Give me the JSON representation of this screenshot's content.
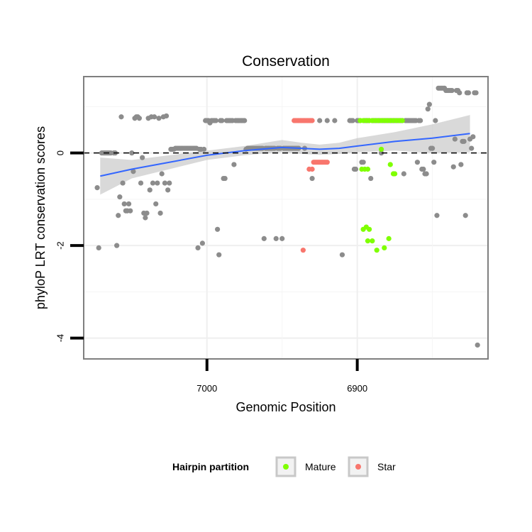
{
  "chart_data": {
    "type": "scatter",
    "title": "Conservation",
    "xlabel": "Genomic Position",
    "ylabel": "phyloP LRT conservation scores",
    "x_reversed": true,
    "xlim": [
      7082,
      6813
    ],
    "ylim": [
      -4.45,
      1.65
    ],
    "x_ticks": [
      7000,
      6900
    ],
    "y_ticks": [
      -4,
      -2,
      0
    ],
    "reference_line": {
      "y": 0,
      "style": "dashed"
    },
    "grid": true,
    "legend": {
      "title": "Hairpin partition",
      "position": "bottom",
      "entries": [
        {
          "name": "Mature",
          "color": "#7fff00"
        },
        {
          "name": "Star",
          "color": "#f8766d"
        }
      ]
    },
    "colors": {
      "other": "#8c8c8c",
      "Mature": "#7fff00",
      "Star": "#f8766d",
      "smooth": "#3366ff",
      "ribbon": "#bfbfbf"
    },
    "smooth": {
      "x": [
        7071,
        7050,
        7025,
        7000,
        6975,
        6950,
        6937,
        6925,
        6912,
        6900,
        6875,
        6850,
        6825
      ],
      "y": [
        -0.5,
        -0.35,
        -0.2,
        -0.05,
        0.05,
        0.12,
        0.1,
        0.08,
        0.1,
        0.15,
        0.25,
        0.32,
        0.42
      ]
    },
    "ribbon": {
      "x": [
        7071,
        7050,
        7025,
        7000,
        6975,
        6950,
        6937,
        6925,
        6912,
        6900,
        6875,
        6850,
        6825
      ],
      "lower": [
        -0.9,
        -0.55,
        -0.35,
        -0.15,
        -0.05,
        0.02,
        -0.02,
        -0.04,
        -0.02,
        0.02,
        0.05,
        0.0,
        0.02
      ],
      "upper": [
        -0.1,
        -0.15,
        -0.05,
        0.05,
        0.15,
        0.28,
        0.22,
        0.18,
        0.22,
        0.32,
        0.45,
        0.62,
        0.82
      ]
    },
    "series": [
      {
        "name": "other",
        "x": [
          7073,
          7072,
          7070,
          7069,
          7068,
          7067,
          7066,
          7065,
          7064,
          7062,
          7061,
          7060,
          7059,
          7058,
          7057,
          7056,
          7055,
          7054,
          7053,
          7052,
          7051,
          7050,
          7049,
          7048,
          7047,
          7046,
          7045,
          7044,
          7043,
          7042,
          7041,
          7040,
          7039,
          7038,
          7037,
          7036,
          7035,
          7034,
          7033,
          7032,
          7031,
          7030,
          7029,
          7028,
          7027,
          7026,
          7025,
          7024,
          7023,
          7022,
          7021,
          7020,
          7019,
          7018,
          7017,
          7016,
          7015,
          7014,
          7013,
          7012,
          7011,
          7010,
          7009,
          7008,
          7007,
          7006,
          7005,
          7004,
          7003,
          7002,
          7001,
          7000,
          6999,
          6998,
          6997,
          6996,
          6995,
          6994,
          6993,
          6992,
          6991,
          6990,
          6989,
          6988,
          6987,
          6986,
          6985,
          6984,
          6983,
          6982,
          6981,
          6980,
          6979,
          6978,
          6977,
          6976,
          6975,
          6974,
          6973,
          6972,
          6971,
          6970,
          6969,
          6968,
          6967,
          6966,
          6965,
          6964,
          6963,
          6962,
          6961,
          6960,
          6959,
          6958,
          6957,
          6956,
          6955,
          6954,
          6953,
          6952,
          6951,
          6950,
          6949,
          6948,
          6947,
          6946,
          6945,
          6944,
          6943,
          6942,
          6941,
          6940,
          6939,
          6935,
          6930,
          6925,
          6920,
          6915,
          6910,
          6905,
          6904,
          6903,
          6902,
          6901,
          6900,
          6899,
          6898,
          6897,
          6896,
          6895,
          6894,
          6893,
          6892,
          6891,
          6890,
          6889,
          6888,
          6887,
          6886,
          6885,
          6884,
          6883,
          6882,
          6881,
          6880,
          6879,
          6878,
          6877,
          6876,
          6875,
          6874,
          6873,
          6872,
          6871,
          6870,
          6869,
          6868,
          6867,
          6866,
          6865,
          6864,
          6863,
          6862,
          6861,
          6860,
          6859,
          6858,
          6857,
          6856,
          6855,
          6854,
          6853,
          6852,
          6851,
          6850,
          6849,
          6848,
          6847,
          6846,
          6845,
          6844,
          6843,
          6842,
          6841,
          6840,
          6839,
          6838,
          6837,
          6836,
          6835,
          6834,
          6833,
          6832,
          6831,
          6830,
          6829,
          6828,
          6827,
          6826,
          6825,
          6824,
          6823,
          6822,
          6821,
          6820
        ],
        "y": [
          -0.75,
          -2.05,
          0.0,
          0.0,
          0.0,
          0.0,
          0.0,
          0.0,
          0.0,
          0.0,
          0.0,
          -2.0,
          -1.35,
          -0.95,
          0.78,
          -0.65,
          -1.1,
          -1.25,
          -1.25,
          -1.1,
          -1.25,
          0.0,
          -0.4,
          0.75,
          0.78,
          0.78,
          0.75,
          -0.65,
          -0.1,
          -1.3,
          -1.4,
          -1.3,
          0.75,
          -0.8,
          0.78,
          -0.65,
          0.78,
          -1.1,
          -0.65,
          0.75,
          -1.3,
          -0.45,
          0.78,
          -0.65,
          0.8,
          -0.8,
          -0.65,
          0.08,
          0.08,
          0.08,
          0.1,
          0.1,
          0.1,
          0.1,
          0.1,
          0.1,
          0.1,
          0.1,
          0.1,
          0.1,
          0.1,
          0.1,
          0.1,
          0.1,
          0.1,
          -2.05,
          0.08,
          0.08,
          -1.95,
          0.08,
          0.7,
          0.7,
          0.7,
          0.65,
          0.7,
          0.7,
          0.7,
          0.7,
          -1.65,
          -2.2,
          0.7,
          0.7,
          -0.55,
          -0.55,
          0.7,
          0.7,
          0.7,
          0.7,
          0.7,
          -0.25,
          0.7,
          0.7,
          0.7,
          0.7,
          0.7,
          0.7,
          0.7,
          0.08,
          0.1,
          0.1,
          0.1,
          0.1,
          0.1,
          0.1,
          0.1,
          0.1,
          0.1,
          0.1,
          0.1,
          -1.85,
          0.1,
          0.1,
          0.1,
          0.1,
          0.1,
          0.1,
          0.1,
          -1.85,
          0.1,
          0.1,
          0.1,
          -1.85,
          0.1,
          0.1,
          0.1,
          0.1,
          0.1,
          0.1,
          0.1,
          0.1,
          0.1,
          0.1,
          0.1,
          0.1,
          -0.55,
          0.7,
          0.7,
          0.7,
          -2.2,
          0.7,
          0.7,
          0.7,
          -0.35,
          -0.35,
          0.7,
          0.7,
          0.7,
          -0.2,
          -0.2,
          0.7,
          0.7,
          0.7,
          0.7,
          -0.55,
          0.7,
          0.7,
          0.7,
          0.7,
          0.7,
          0.7,
          0.0,
          0.7,
          0.7,
          0.7,
          0.7,
          0.7,
          0.7,
          0.7,
          0.7,
          0.7,
          0.7,
          0.7,
          0.7,
          0.7,
          0.7,
          -0.45,
          0.7,
          0.7,
          0.7,
          0.7,
          0.7,
          0.7,
          0.7,
          0.7,
          -0.2,
          0.7,
          0.7,
          -0.35,
          -0.35,
          -0.45,
          -0.45,
          0.95,
          1.05,
          0.1,
          0.1,
          -0.2,
          0.7,
          -1.35,
          1.4,
          1.4,
          1.4,
          1.4,
          1.4,
          1.35,
          1.35,
          1.35,
          1.35,
          1.35,
          -0.3,
          0.3,
          1.35,
          1.35,
          1.3,
          -0.25,
          0.25,
          0.25,
          -1.35,
          1.3,
          1.3,
          0.3,
          0.1,
          0.35,
          1.3,
          1.3,
          -4.15
        ],
        "color": "#8c8c8c"
      },
      {
        "name": "Star",
        "x": [
          6942,
          6941,
          6940,
          6939,
          6938,
          6937,
          6936,
          6935,
          6934,
          6933,
          6932,
          6931,
          6930,
          6929,
          6928,
          6927,
          6926,
          6925,
          6924,
          6923,
          6922,
          6921,
          6920,
          6936,
          6932,
          6930
        ],
        "y": [
          0.7,
          0.7,
          0.7,
          0.7,
          0.7,
          0.7,
          0.7,
          0.7,
          0.7,
          0.7,
          0.7,
          0.7,
          0.7,
          -0.2,
          -0.2,
          -0.2,
          -0.2,
          -0.2,
          -0.2,
          -0.2,
          -0.2,
          -0.2,
          -0.2,
          -2.1,
          -0.35,
          -0.35
        ],
        "color": "#f8766d"
      },
      {
        "name": "Mature",
        "x": [
          6898,
          6896,
          6894,
          6892,
          6890,
          6888,
          6886,
          6884,
          6882,
          6880,
          6878,
          6876,
          6874,
          6872,
          6870,
          6897,
          6895,
          6893,
          6896,
          6894,
          6892,
          6893,
          6890,
          6887,
          6882,
          6879,
          6884,
          6878,
          6876,
          6875
        ],
        "y": [
          0.7,
          0.7,
          0.7,
          0.7,
          0.7,
          0.7,
          0.7,
          0.7,
          0.7,
          0.7,
          0.7,
          0.7,
          0.7,
          0.7,
          0.7,
          -0.35,
          -0.35,
          -0.35,
          -1.65,
          -1.6,
          -1.65,
          -1.9,
          -1.9,
          -2.1,
          -2.05,
          -1.85,
          0.08,
          -0.25,
          -0.45,
          -0.45
        ],
        "color": "#7fff00"
      }
    ]
  }
}
